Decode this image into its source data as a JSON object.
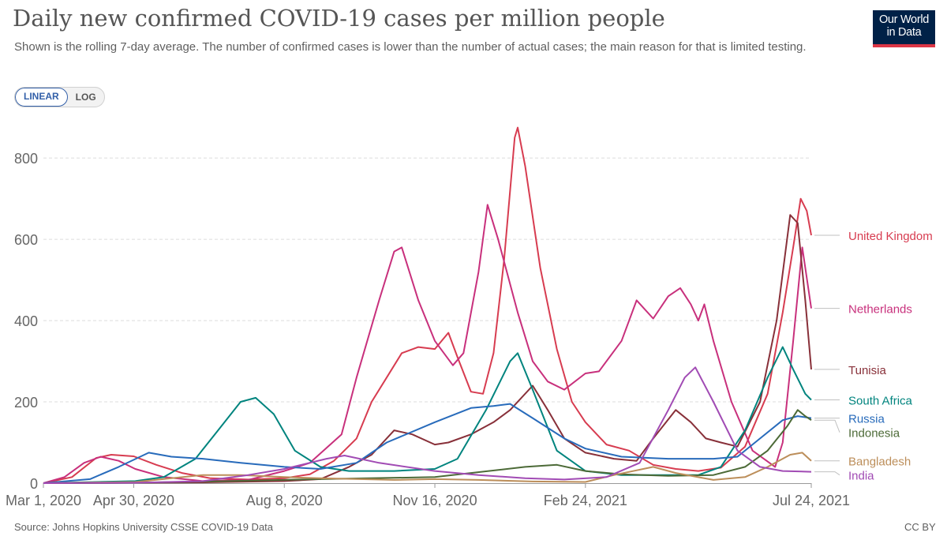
{
  "title": "Daily new confirmed COVID-19 cases per million people",
  "subtitle": "Shown is the rolling 7-day average. The number of confirmed cases is lower than the number of actual cases; the main reason for that is limited testing.",
  "logo": {
    "line1": "Our World",
    "line2": "in Data",
    "color": "#002147",
    "accent": "#dc3545"
  },
  "scale_toggle": {
    "options": [
      "LINEAR",
      "LOG"
    ],
    "selected": "LINEAR"
  },
  "source": "Source: Johns Hopkins University CSSE COVID-19 Data",
  "license": "CC BY",
  "chart_data": {
    "type": "line",
    "x_start": "2020-03-01",
    "x_end": "2021-07-24",
    "x_ticks": [
      "Mar 1, 2020",
      "Apr 30, 2020",
      "Aug 8, 2020",
      "Nov 16, 2020",
      "Feb 24, 2021",
      "Jul 24, 2021"
    ],
    "y_ticks": [
      0,
      200,
      400,
      600,
      800
    ],
    "ylim": [
      0,
      880
    ],
    "grid": "horizontal dashed",
    "legend": "right, end-of-line labels",
    "series": [
      {
        "name": "United Kingdom",
        "color": "#d73c50",
        "points": [
          [
            "2020-03-01",
            0
          ],
          [
            "2020-03-20",
            15
          ],
          [
            "2020-04-05",
            62
          ],
          [
            "2020-04-15",
            70
          ],
          [
            "2020-04-30",
            66
          ],
          [
            "2020-05-15",
            45
          ],
          [
            "2020-06-01",
            25
          ],
          [
            "2020-06-20",
            12
          ],
          [
            "2020-07-15",
            9
          ],
          [
            "2020-08-08",
            12
          ],
          [
            "2020-08-25",
            22
          ],
          [
            "2020-09-10",
            55
          ],
          [
            "2020-09-25",
            110
          ],
          [
            "2020-10-05",
            200
          ],
          [
            "2020-10-15",
            260
          ],
          [
            "2020-10-25",
            320
          ],
          [
            "2020-11-05",
            335
          ],
          [
            "2020-11-16",
            330
          ],
          [
            "2020-11-25",
            370
          ],
          [
            "2020-12-01",
            310
          ],
          [
            "2020-12-10",
            225
          ],
          [
            "2020-12-18",
            220
          ],
          [
            "2020-12-25",
            320
          ],
          [
            "2021-01-01",
            550
          ],
          [
            "2021-01-08",
            850
          ],
          [
            "2021-01-10",
            875
          ],
          [
            "2021-01-15",
            780
          ],
          [
            "2021-01-25",
            530
          ],
          [
            "2021-02-05",
            330
          ],
          [
            "2021-02-15",
            200
          ],
          [
            "2021-02-24",
            150
          ],
          [
            "2021-03-10",
            95
          ],
          [
            "2021-03-25",
            80
          ],
          [
            "2021-04-10",
            45
          ],
          [
            "2021-04-25",
            35
          ],
          [
            "2021-05-10",
            30
          ],
          [
            "2021-05-25",
            38
          ],
          [
            "2021-06-10",
            90
          ],
          [
            "2021-06-25",
            220
          ],
          [
            "2021-07-05",
            420
          ],
          [
            "2021-07-12",
            580
          ],
          [
            "2021-07-17",
            700
          ],
          [
            "2021-07-21",
            670
          ],
          [
            "2021-07-24",
            610
          ]
        ]
      },
      {
        "name": "Netherlands",
        "color": "#c8307c",
        "points": [
          [
            "2020-03-01",
            0
          ],
          [
            "2020-03-15",
            15
          ],
          [
            "2020-03-28",
            50
          ],
          [
            "2020-04-08",
            65
          ],
          [
            "2020-04-20",
            55
          ],
          [
            "2020-05-01",
            35
          ],
          [
            "2020-05-20",
            15
          ],
          [
            "2020-06-15",
            5
          ],
          [
            "2020-07-15",
            8
          ],
          [
            "2020-08-08",
            30
          ],
          [
            "2020-08-25",
            50
          ],
          [
            "2020-09-15",
            120
          ],
          [
            "2020-09-25",
            260
          ],
          [
            "2020-10-10",
            450
          ],
          [
            "2020-10-20",
            570
          ],
          [
            "2020-10-25",
            580
          ],
          [
            "2020-11-05",
            450
          ],
          [
            "2020-11-16",
            350
          ],
          [
            "2020-11-28",
            290
          ],
          [
            "2020-12-05",
            320
          ],
          [
            "2020-12-15",
            520
          ],
          [
            "2020-12-21",
            685
          ],
          [
            "2020-12-28",
            600
          ],
          [
            "2021-01-10",
            420
          ],
          [
            "2021-01-20",
            300
          ],
          [
            "2021-01-30",
            250
          ],
          [
            "2021-02-10",
            230
          ],
          [
            "2021-02-24",
            270
          ],
          [
            "2021-03-05",
            275
          ],
          [
            "2021-03-20",
            350
          ],
          [
            "2021-03-30",
            450
          ],
          [
            "2021-04-10",
            405
          ],
          [
            "2021-04-20",
            460
          ],
          [
            "2021-04-28",
            480
          ],
          [
            "2021-05-05",
            440
          ],
          [
            "2021-05-10",
            400
          ],
          [
            "2021-05-14",
            440
          ],
          [
            "2021-05-20",
            350
          ],
          [
            "2021-06-01",
            200
          ],
          [
            "2021-06-15",
            80
          ],
          [
            "2021-06-30",
            40
          ],
          [
            "2021-07-05",
            100
          ],
          [
            "2021-07-12",
            350
          ],
          [
            "2021-07-18",
            580
          ],
          [
            "2021-07-24",
            430
          ]
        ]
      },
      {
        "name": "Tunisia",
        "color": "#883039",
        "points": [
          [
            "2020-03-01",
            0
          ],
          [
            "2020-06-15",
            2
          ],
          [
            "2020-08-08",
            5
          ],
          [
            "2020-09-01",
            10
          ],
          [
            "2020-09-20",
            40
          ],
          [
            "2020-10-05",
            70
          ],
          [
            "2020-10-20",
            130
          ],
          [
            "2020-11-01",
            120
          ],
          [
            "2020-11-16",
            95
          ],
          [
            "2020-11-25",
            100
          ],
          [
            "2020-12-10",
            120
          ],
          [
            "2020-12-25",
            150
          ],
          [
            "2021-01-05",
            180
          ],
          [
            "2021-01-20",
            240
          ],
          [
            "2021-01-30",
            180
          ],
          [
            "2021-02-10",
            110
          ],
          [
            "2021-02-24",
            75
          ],
          [
            "2021-03-15",
            60
          ],
          [
            "2021-03-30",
            55
          ],
          [
            "2021-04-10",
            110
          ],
          [
            "2021-04-25",
            180
          ],
          [
            "2021-05-05",
            150
          ],
          [
            "2021-05-15",
            110
          ],
          [
            "2021-05-25",
            100
          ],
          [
            "2021-06-05",
            90
          ],
          [
            "2021-06-20",
            200
          ],
          [
            "2021-07-01",
            400
          ],
          [
            "2021-07-10",
            660
          ],
          [
            "2021-07-15",
            640
          ],
          [
            "2021-07-20",
            450
          ],
          [
            "2021-07-24",
            280
          ]
        ]
      },
      {
        "name": "South Africa",
        "color": "#00847e",
        "points": [
          [
            "2020-03-01",
            0
          ],
          [
            "2020-05-01",
            5
          ],
          [
            "2020-05-20",
            15
          ],
          [
            "2020-06-10",
            60
          ],
          [
            "2020-06-25",
            130
          ],
          [
            "2020-07-10",
            200
          ],
          [
            "2020-07-20",
            210
          ],
          [
            "2020-08-01",
            170
          ],
          [
            "2020-08-15",
            80
          ],
          [
            "2020-09-01",
            40
          ],
          [
            "2020-09-20",
            30
          ],
          [
            "2020-10-20",
            30
          ],
          [
            "2020-11-16",
            35
          ],
          [
            "2020-12-01",
            60
          ],
          [
            "2020-12-20",
            180
          ],
          [
            "2021-01-05",
            300
          ],
          [
            "2021-01-10",
            320
          ],
          [
            "2021-01-20",
            230
          ],
          [
            "2021-02-05",
            80
          ],
          [
            "2021-02-24",
            30
          ],
          [
            "2021-03-20",
            20
          ],
          [
            "2021-04-20",
            20
          ],
          [
            "2021-05-10",
            20
          ],
          [
            "2021-05-25",
            40
          ],
          [
            "2021-06-10",
            130
          ],
          [
            "2021-06-25",
            260
          ],
          [
            "2021-07-05",
            335
          ],
          [
            "2021-07-12",
            280
          ],
          [
            "2021-07-20",
            220
          ],
          [
            "2021-07-24",
            205
          ]
        ]
      },
      {
        "name": "Russia",
        "color": "#286bbb",
        "points": [
          [
            "2020-03-01",
            0
          ],
          [
            "2020-04-01",
            10
          ],
          [
            "2020-04-20",
            40
          ],
          [
            "2020-05-10",
            75
          ],
          [
            "2020-05-25",
            65
          ],
          [
            "2020-06-15",
            60
          ],
          [
            "2020-07-10",
            50
          ],
          [
            "2020-08-08",
            40
          ],
          [
            "2020-09-01",
            35
          ],
          [
            "2020-09-25",
            50
          ],
          [
            "2020-10-15",
            100
          ],
          [
            "2020-11-16",
            150
          ],
          [
            "2020-12-10",
            185
          ],
          [
            "2020-12-25",
            190
          ],
          [
            "2021-01-05",
            195
          ],
          [
            "2021-01-20",
            160
          ],
          [
            "2021-02-10",
            110
          ],
          [
            "2021-02-24",
            85
          ],
          [
            "2021-03-20",
            65
          ],
          [
            "2021-04-20",
            60
          ],
          [
            "2021-05-20",
            60
          ],
          [
            "2021-06-05",
            65
          ],
          [
            "2021-06-20",
            110
          ],
          [
            "2021-07-05",
            155
          ],
          [
            "2021-07-15",
            165
          ],
          [
            "2021-07-24",
            160
          ]
        ]
      },
      {
        "name": "Indonesia",
        "color": "#4c6a37",
        "points": [
          [
            "2020-03-01",
            0
          ],
          [
            "2020-05-01",
            1
          ],
          [
            "2020-07-01",
            5
          ],
          [
            "2020-09-01",
            10
          ],
          [
            "2020-11-16",
            15
          ],
          [
            "2021-01-15",
            40
          ],
          [
            "2021-02-05",
            45
          ],
          [
            "2021-02-24",
            30
          ],
          [
            "2021-03-20",
            22
          ],
          [
            "2021-04-20",
            18
          ],
          [
            "2021-05-20",
            20
          ],
          [
            "2021-06-10",
            40
          ],
          [
            "2021-06-25",
            80
          ],
          [
            "2021-07-08",
            140
          ],
          [
            "2021-07-15",
            180
          ],
          [
            "2021-07-20",
            165
          ],
          [
            "2021-07-24",
            155
          ]
        ]
      },
      {
        "name": "Bangladesh",
        "color": "#bc8e5a",
        "points": [
          [
            "2020-03-01",
            0
          ],
          [
            "2020-05-01",
            3
          ],
          [
            "2020-06-15",
            20
          ],
          [
            "2020-07-10",
            20
          ],
          [
            "2020-08-08",
            15
          ],
          [
            "2020-09-01",
            12
          ],
          [
            "2020-10-20",
            8
          ],
          [
            "2020-11-16",
            10
          ],
          [
            "2020-12-15",
            8
          ],
          [
            "2021-01-20",
            4
          ],
          [
            "2021-02-24",
            3
          ],
          [
            "2021-03-15",
            20
          ],
          [
            "2021-04-10",
            40
          ],
          [
            "2021-04-25",
            25
          ],
          [
            "2021-05-20",
            8
          ],
          [
            "2021-06-10",
            15
          ],
          [
            "2021-06-25",
            40
          ],
          [
            "2021-07-10",
            70
          ],
          [
            "2021-07-18",
            75
          ],
          [
            "2021-07-24",
            55
          ]
        ]
      },
      {
        "name": "India",
        "color": "#a14bb4",
        "points": [
          [
            "2020-03-01",
            0
          ],
          [
            "2020-05-01",
            1
          ],
          [
            "2020-06-15",
            5
          ],
          [
            "2020-07-15",
            20
          ],
          [
            "2020-08-08",
            35
          ],
          [
            "2020-09-05",
            60
          ],
          [
            "2020-09-17",
            68
          ],
          [
            "2020-10-10",
            50
          ],
          [
            "2020-11-16",
            30
          ],
          [
            "2020-12-15",
            20
          ],
          [
            "2021-01-15",
            12
          ],
          [
            "2021-02-10",
            9
          ],
          [
            "2021-03-10",
            15
          ],
          [
            "2021-04-01",
            50
          ],
          [
            "2021-04-20",
            180
          ],
          [
            "2021-05-01",
            260
          ],
          [
            "2021-05-08",
            285
          ],
          [
            "2021-05-20",
            200
          ],
          [
            "2021-06-05",
            80
          ],
          [
            "2021-06-20",
            40
          ],
          [
            "2021-07-05",
            30
          ],
          [
            "2021-07-24",
            28
          ]
        ]
      }
    ]
  }
}
